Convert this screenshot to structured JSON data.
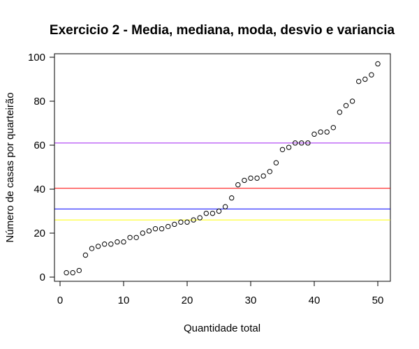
{
  "chart_data": {
    "type": "scatter",
    "title": "Exercicio 2 - Media, mediana, moda, desvio e variancia",
    "xlabel": "Quantidade total",
    "ylabel": "Número de casas por quarteirão",
    "xlim": [
      0,
      52
    ],
    "ylim": [
      0,
      100
    ],
    "x_ticks": [
      0,
      10,
      20,
      30,
      40,
      50
    ],
    "y_ticks": [
      0,
      20,
      40,
      60,
      80,
      100
    ],
    "grid": false,
    "marker": "open-circle",
    "points": [
      {
        "x": 1,
        "y": 2
      },
      {
        "x": 2,
        "y": 2
      },
      {
        "x": 3,
        "y": 3
      },
      {
        "x": 4,
        "y": 10
      },
      {
        "x": 5,
        "y": 13
      },
      {
        "x": 6,
        "y": 14
      },
      {
        "x": 7,
        "y": 15
      },
      {
        "x": 8,
        "y": 15
      },
      {
        "x": 9,
        "y": 16
      },
      {
        "x": 10,
        "y": 16
      },
      {
        "x": 11,
        "y": 18
      },
      {
        "x": 12,
        "y": 18
      },
      {
        "x": 13,
        "y": 20
      },
      {
        "x": 14,
        "y": 21
      },
      {
        "x": 15,
        "y": 22
      },
      {
        "x": 16,
        "y": 22
      },
      {
        "x": 17,
        "y": 23
      },
      {
        "x": 18,
        "y": 24
      },
      {
        "x": 19,
        "y": 25
      },
      {
        "x": 20,
        "y": 25
      },
      {
        "x": 21,
        "y": 26
      },
      {
        "x": 22,
        "y": 27
      },
      {
        "x": 23,
        "y": 29
      },
      {
        "x": 24,
        "y": 29
      },
      {
        "x": 25,
        "y": 30
      },
      {
        "x": 26,
        "y": 32
      },
      {
        "x": 27,
        "y": 36
      },
      {
        "x": 28,
        "y": 42
      },
      {
        "x": 29,
        "y": 44
      },
      {
        "x": 30,
        "y": 45
      },
      {
        "x": 31,
        "y": 45
      },
      {
        "x": 32,
        "y": 46
      },
      {
        "x": 33,
        "y": 48
      },
      {
        "x": 34,
        "y": 52
      },
      {
        "x": 35,
        "y": 58
      },
      {
        "x": 36,
        "y": 59
      },
      {
        "x": 37,
        "y": 61
      },
      {
        "x": 38,
        "y": 61
      },
      {
        "x": 39,
        "y": 61
      },
      {
        "x": 40,
        "y": 65
      },
      {
        "x": 41,
        "y": 66
      },
      {
        "x": 42,
        "y": 66
      },
      {
        "x": 43,
        "y": 68
      },
      {
        "x": 44,
        "y": 75
      },
      {
        "x": 45,
        "y": 78
      },
      {
        "x": 46,
        "y": 80
      },
      {
        "x": 47,
        "y": 89
      },
      {
        "x": 48,
        "y": 90
      },
      {
        "x": 49,
        "y": 92
      },
      {
        "x": 50,
        "y": 97
      }
    ],
    "hlines": [
      {
        "y": 61,
        "color": "#a020f0"
      },
      {
        "y": 40.4,
        "color": "#ff0000"
      },
      {
        "y": 31,
        "color": "#0000ff"
      },
      {
        "y": 26,
        "color": "#ffff00"
      }
    ]
  }
}
